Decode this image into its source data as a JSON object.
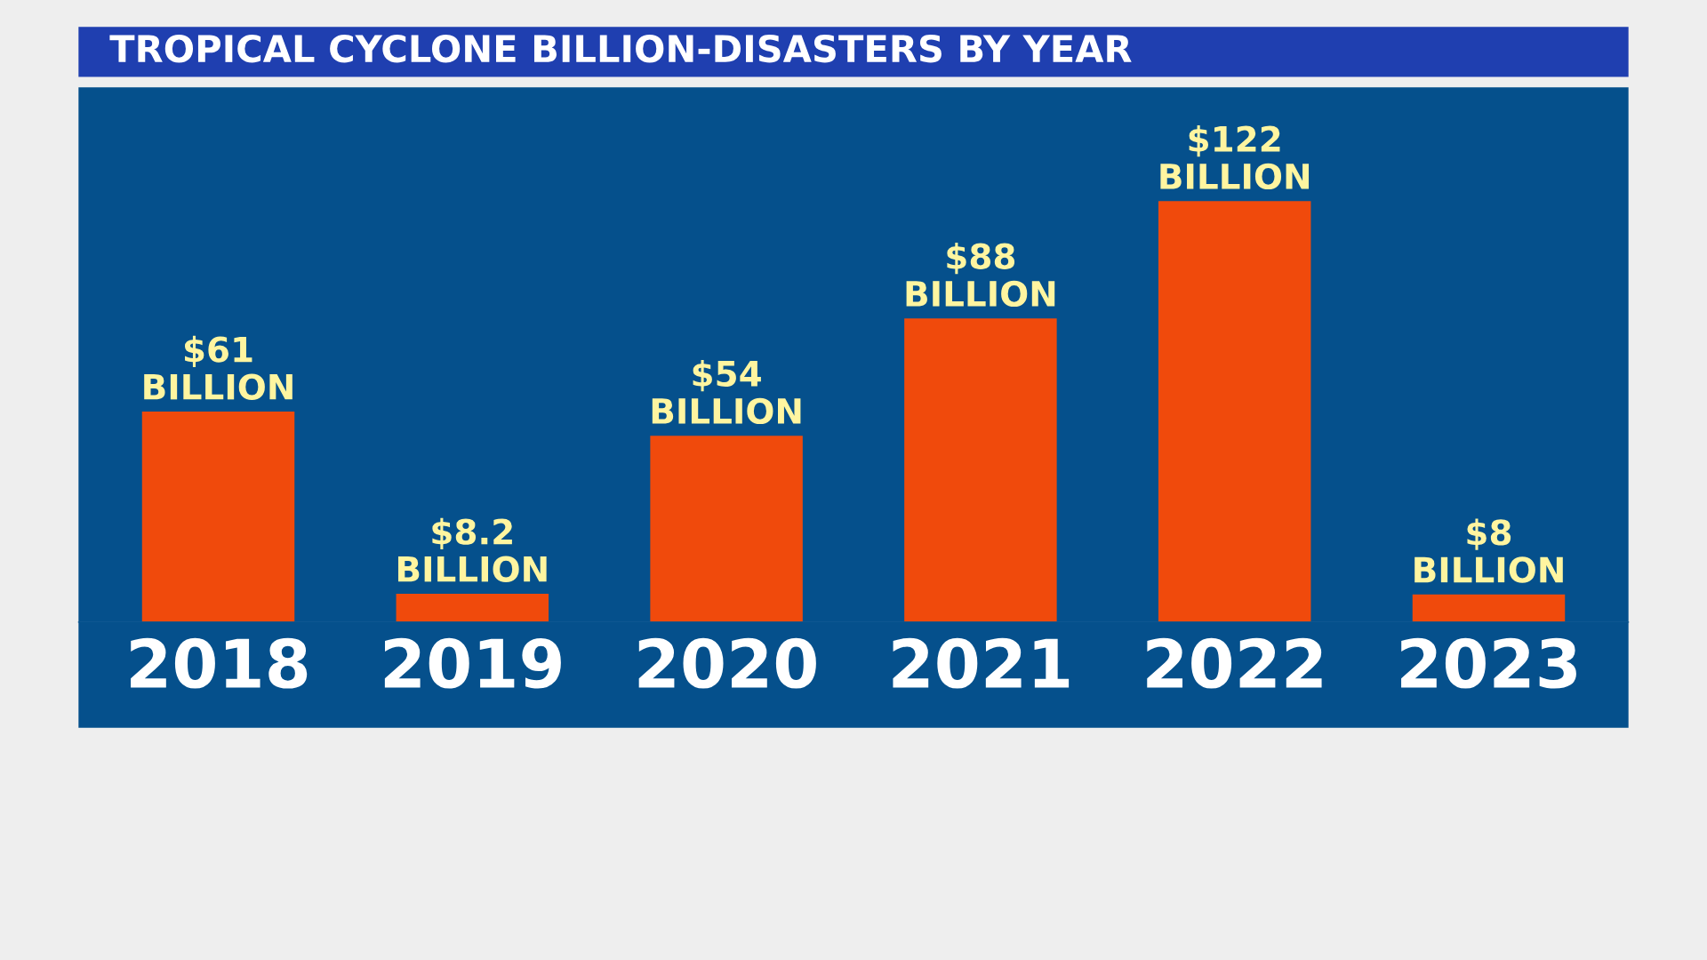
{
  "chart_data": {
    "type": "bar",
    "title": "TROPICAL CYCLONE BILLION-DISASTERS BY YEAR",
    "categories": [
      "2018",
      "2019",
      "2020",
      "2021",
      "2022",
      "2023"
    ],
    "values": [
      61,
      8.2,
      54,
      88,
      122,
      8
    ],
    "value_labels": [
      "$61\nBILLION",
      "$8.2\nBILLION",
      "$54\nBILLION",
      "$88\nBILLION",
      "$122\nBILLION",
      "$8\nBILLION"
    ],
    "color": "#f04a0c",
    "grid": false
  }
}
